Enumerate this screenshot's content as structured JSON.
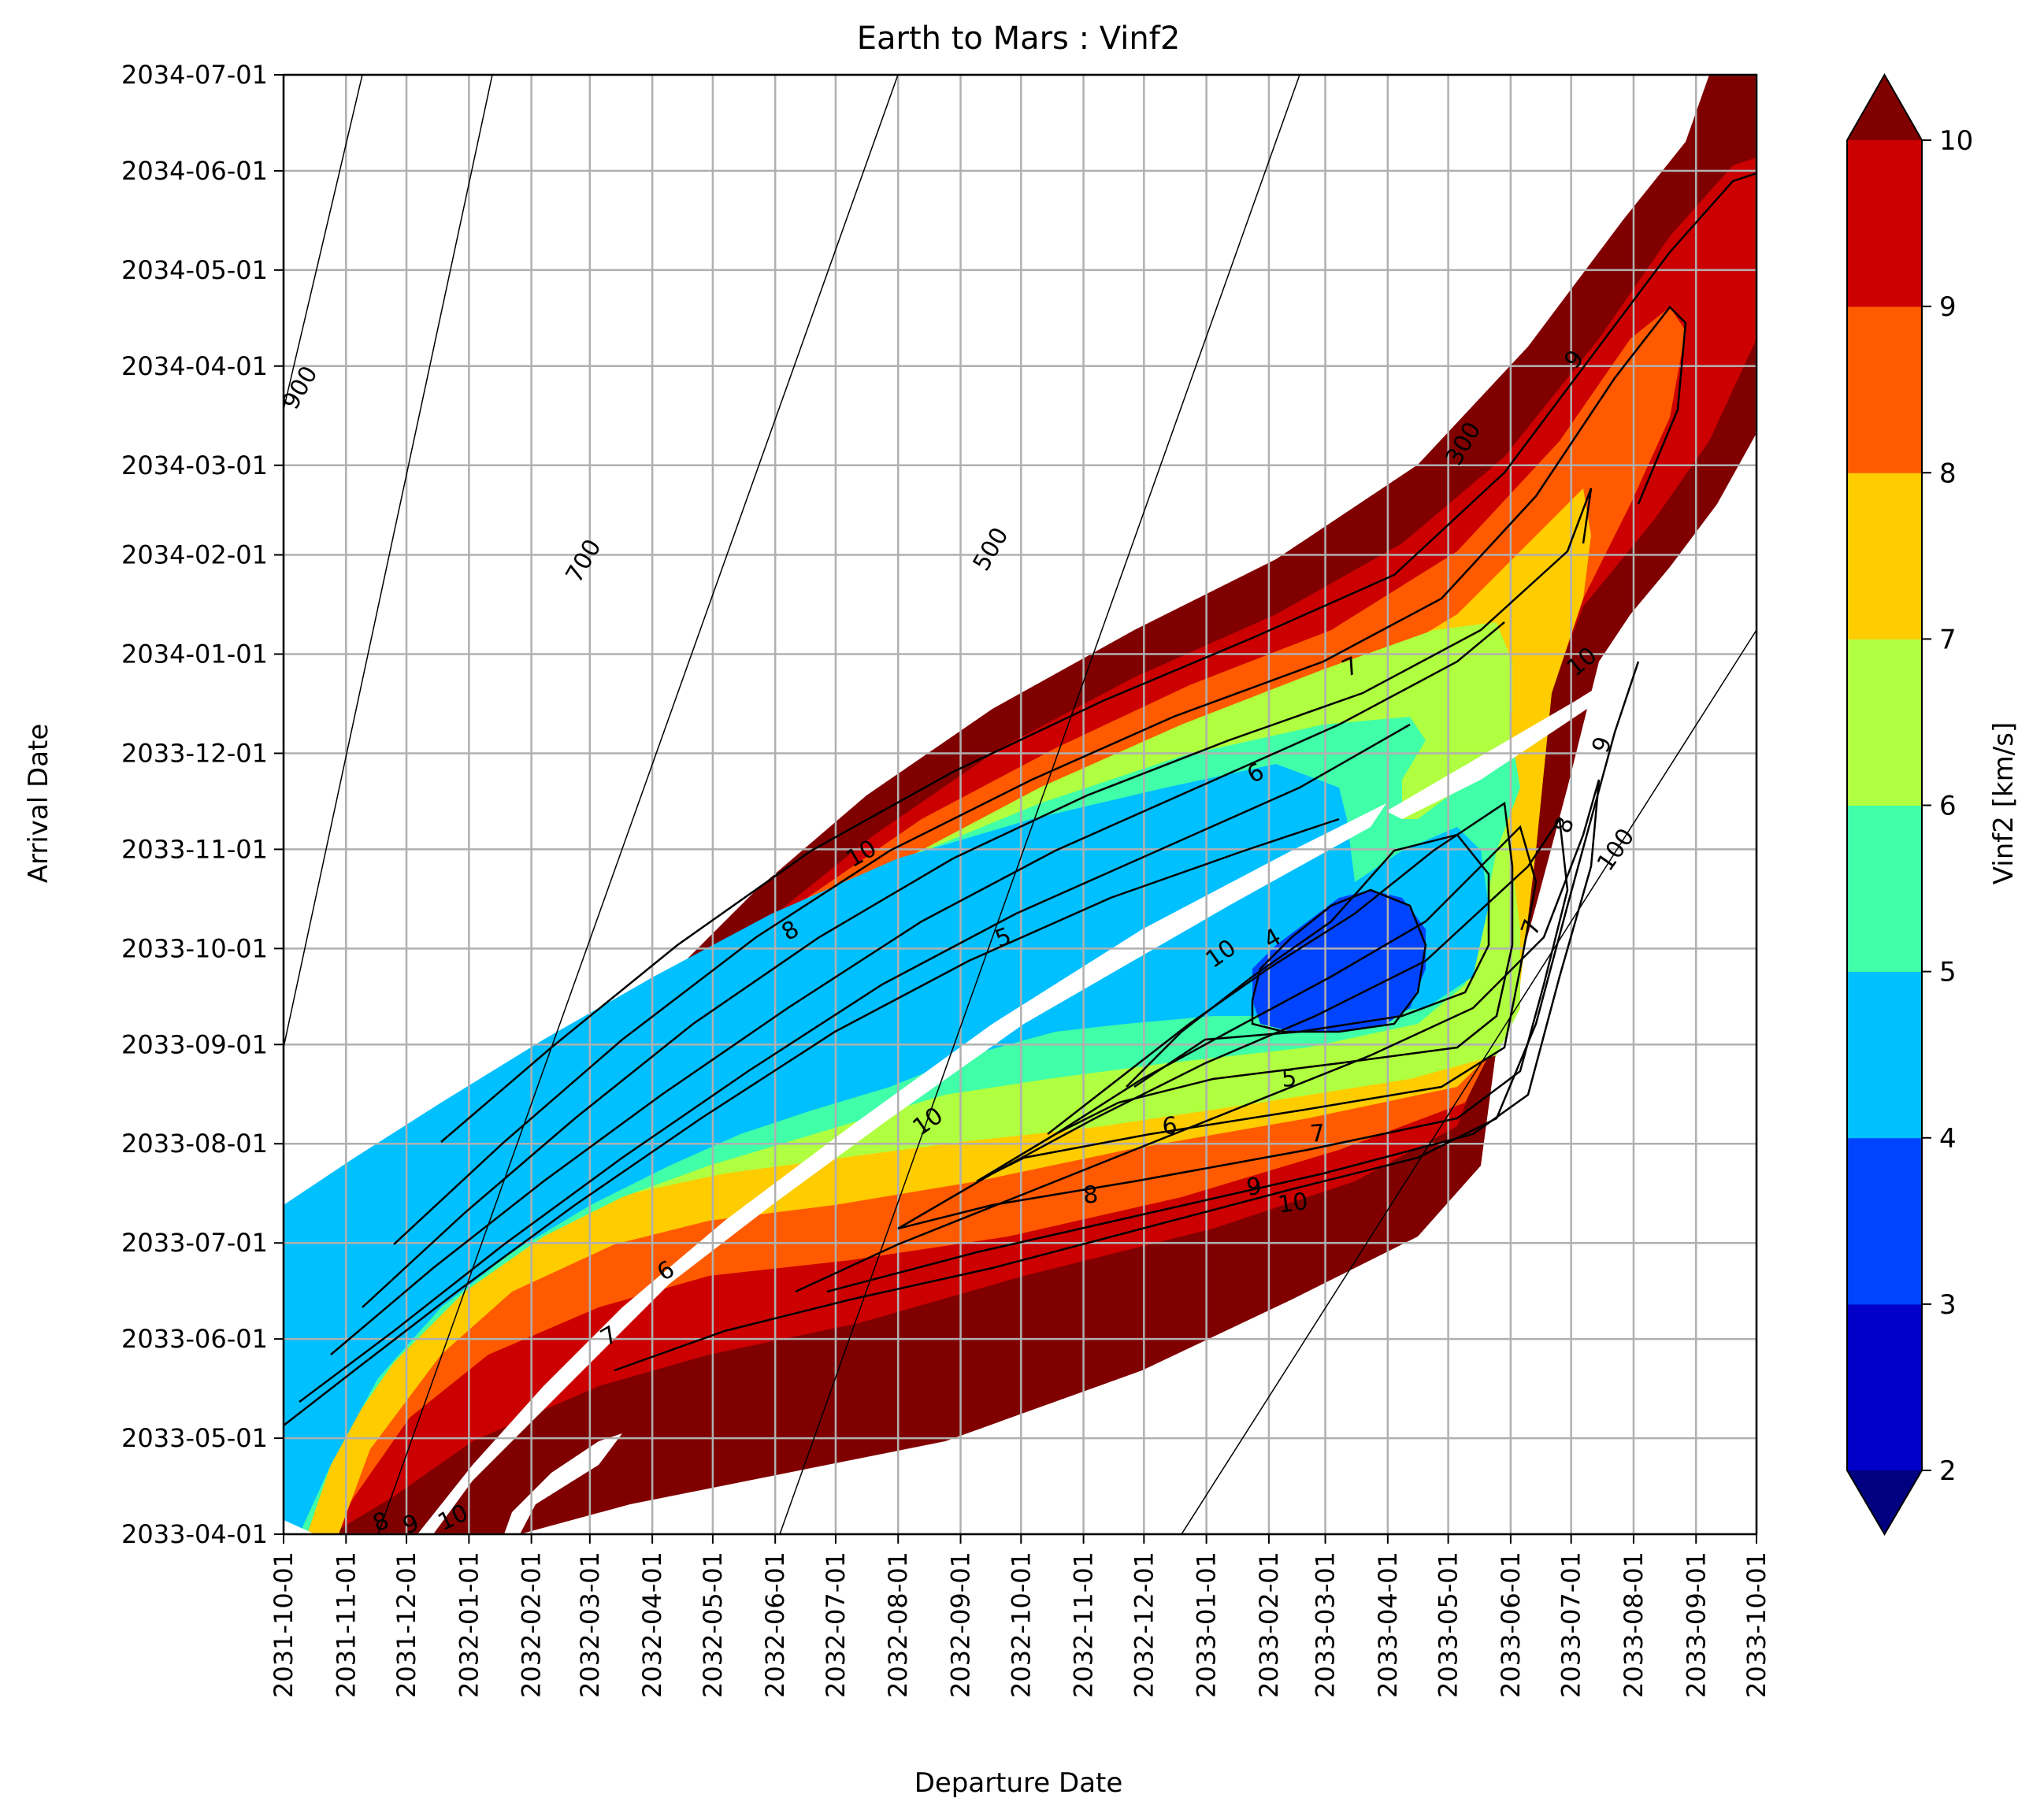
{
  "chart_data": {
    "type": "contour",
    "title": "Earth to Mars : Vinf2",
    "xlabel": "Departure Date",
    "ylabel": "Arrival Date",
    "x_ticks": [
      "2031-10-01",
      "2031-11-01",
      "2031-12-01",
      "2032-01-01",
      "2032-02-01",
      "2032-03-01",
      "2032-04-01",
      "2032-05-01",
      "2032-06-01",
      "2032-07-01",
      "2032-08-01",
      "2032-09-01",
      "2032-10-01",
      "2032-11-01",
      "2032-12-01",
      "2033-01-01",
      "2033-02-01",
      "2033-03-01",
      "2033-04-01",
      "2033-05-01",
      "2033-06-01",
      "2033-07-01",
      "2033-08-01",
      "2033-09-01",
      "2033-10-01"
    ],
    "y_ticks": [
      "2033-04-01",
      "2033-05-01",
      "2033-06-01",
      "2033-07-01",
      "2033-08-01",
      "2033-09-01",
      "2033-10-01",
      "2033-11-01",
      "2033-12-01",
      "2034-01-01",
      "2034-02-01",
      "2034-03-01",
      "2034-04-01",
      "2034-05-01",
      "2034-06-01",
      "2034-07-01"
    ],
    "xlim": [
      "2031-10-01",
      "2033-10-01"
    ],
    "ylim": [
      "2033-04-01",
      "2034-07-01"
    ],
    "grid": true,
    "colorbar": {
      "label": "Vinf2 [km/s]",
      "levels": [
        2,
        3,
        4,
        5,
        6,
        7,
        8,
        9,
        10
      ],
      "colors": [
        "#0000c8",
        "#0044ff",
        "#00c0ff",
        "#40ffa8",
        "#b0ff40",
        "#ffcc00",
        "#ff5a00",
        "#cc0000"
      ],
      "under_color": "#000080",
      "over_color": "#800000",
      "extend": "both"
    },
    "tof_contour_labels": [
      "900",
      "700",
      "500",
      "300",
      "100"
    ],
    "vinf_contour_labels": [
      "10",
      "9",
      "8",
      "7",
      "6",
      "5",
      "4"
    ],
    "minimum_region": {
      "departure": "2033-03-15",
      "arrival": "2033-09-21",
      "vinf_range": "3-4"
    }
  }
}
